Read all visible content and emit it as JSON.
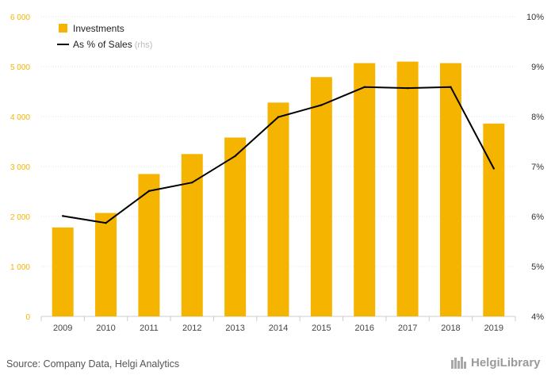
{
  "chart_data": {
    "type": "bar",
    "categories": [
      "2009",
      "2010",
      "2011",
      "2012",
      "2013",
      "2014",
      "2015",
      "2016",
      "2017",
      "2018",
      "2019"
    ],
    "series": [
      {
        "name": "Investments",
        "type": "bar",
        "axis": "left",
        "color": "#f5b400",
        "values": [
          1780,
          2070,
          2850,
          3250,
          3580,
          4280,
          4790,
          5070,
          5100,
          5070,
          3860
        ]
      },
      {
        "name": "As % of Sales",
        "type": "line",
        "axis": "right",
        "color": "#000000",
        "values": [
          6.01,
          5.87,
          6.51,
          6.68,
          7.21,
          7.99,
          8.23,
          8.59,
          8.57,
          8.59,
          6.96
        ]
      }
    ],
    "left_axis": {
      "ylim": [
        0,
        6000
      ],
      "ticks": [
        0,
        1000,
        2000,
        3000,
        4000,
        5000,
        6000
      ],
      "tick_labels": [
        "0",
        "1 000",
        "2 000",
        "3 000",
        "4 000",
        "5 000",
        "6 000"
      ],
      "color": "#f5b400"
    },
    "right_axis": {
      "ylim": [
        4,
        10
      ],
      "ticks": [
        4,
        5,
        6,
        7,
        8,
        9,
        10
      ],
      "tick_labels": [
        "4%",
        "5%",
        "6%",
        "7%",
        "8%",
        "9%",
        "10%"
      ]
    },
    "legend": {
      "placement": "top-left",
      "items": [
        {
          "label": "Investments",
          "suffix": "",
          "marker": "square",
          "color": "#f5b400"
        },
        {
          "label": "As % of Sales",
          "suffix": "(rhs)",
          "marker": "line",
          "color": "#000000"
        }
      ]
    },
    "grid": true
  },
  "footer": {
    "source": "Source: Company Data, Helgi Analytics",
    "brand": "HelgiLibrary"
  }
}
